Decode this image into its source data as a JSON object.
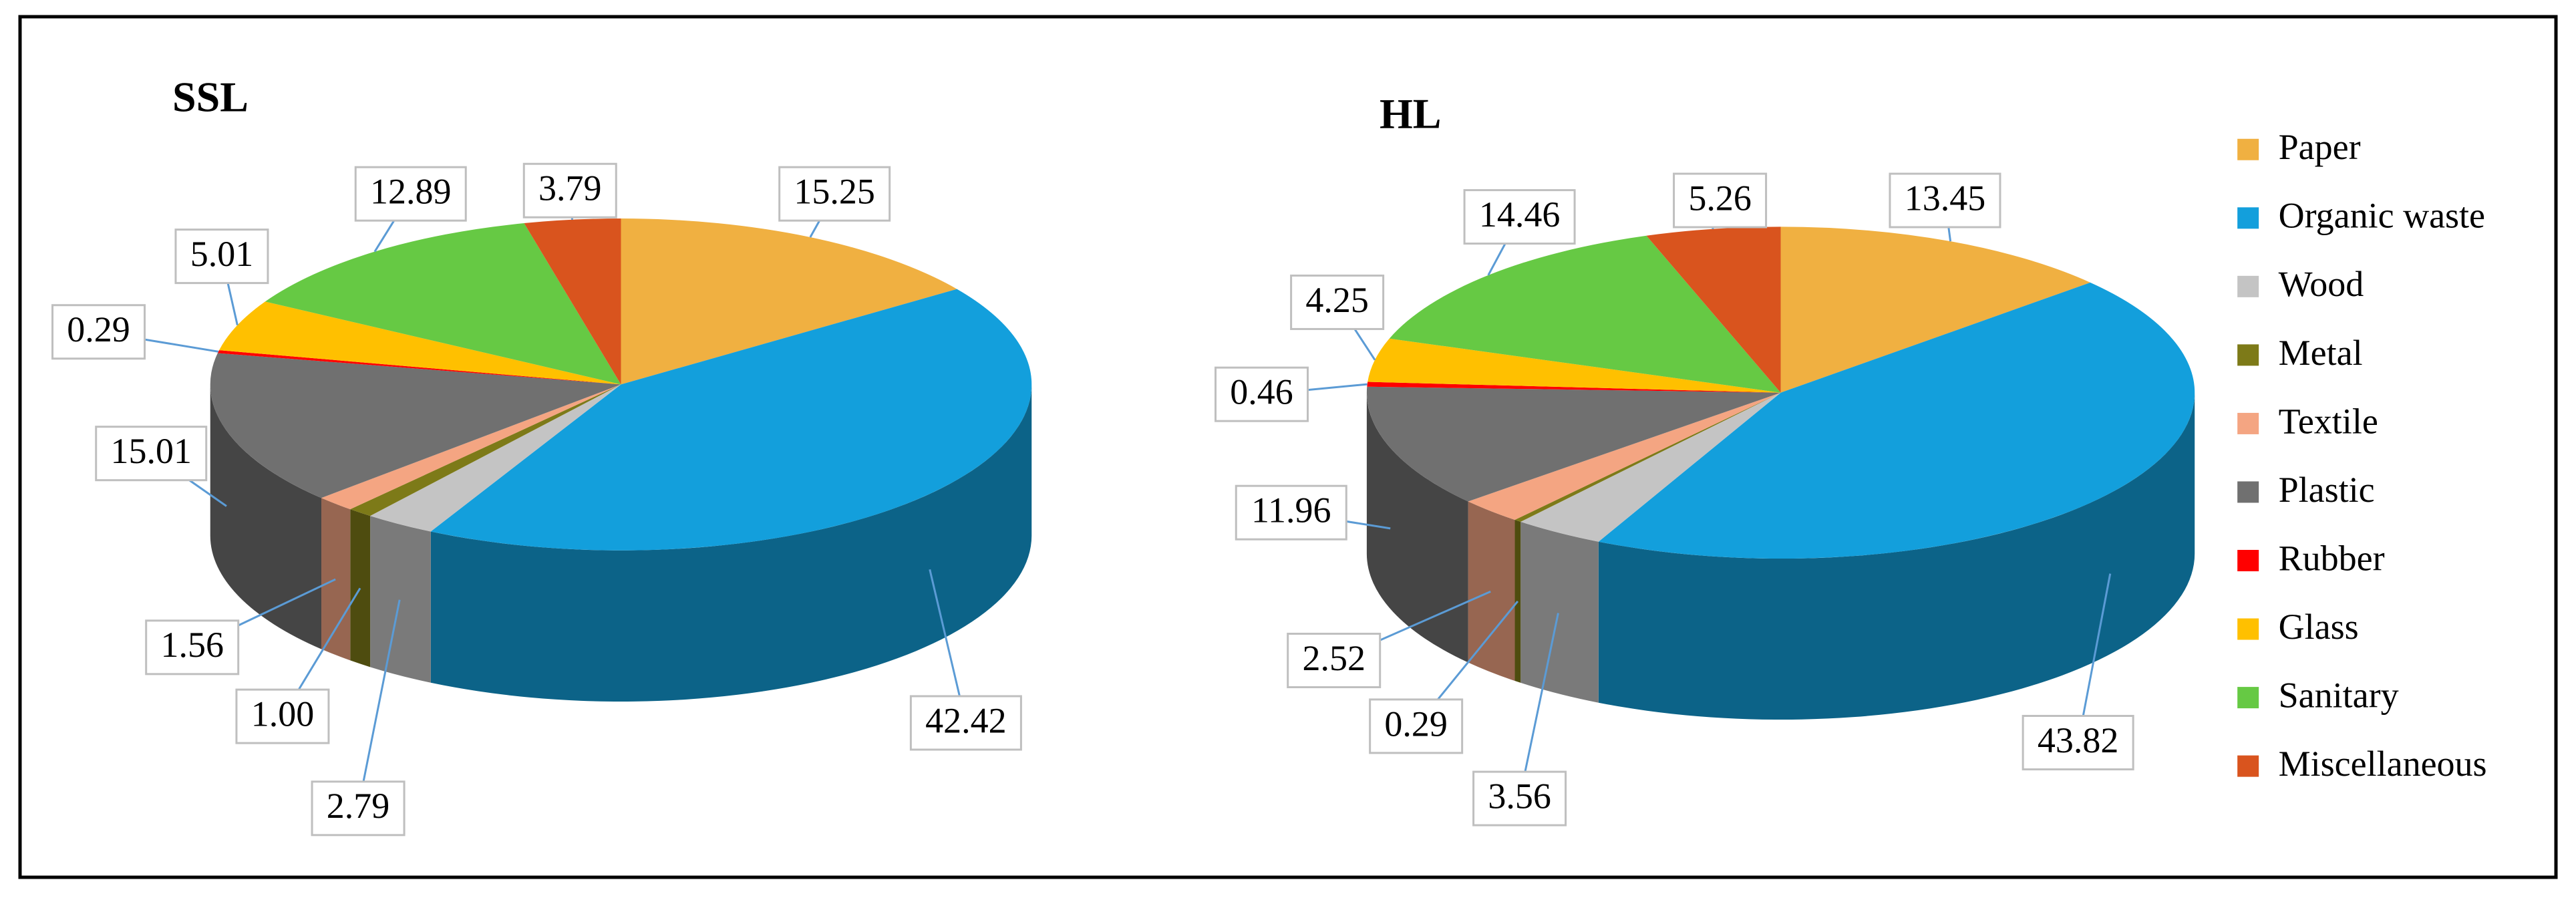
{
  "chart_data": [
    {
      "type": "pie",
      "title": "SSL",
      "values": [
        15.25,
        42.42,
        2.79,
        1.0,
        1.56,
        15.01,
        0.29,
        5.01,
        12.89,
        3.79
      ],
      "value_labels": [
        "15.25",
        "42.42",
        "2.79",
        "1.00",
        "1.56",
        "15.01",
        "0.29",
        "5.01",
        "12.89",
        "3.79"
      ]
    },
    {
      "type": "pie",
      "title": "HL",
      "values": [
        13.45,
        43.82,
        3.56,
        0.29,
        2.52,
        11.96,
        0.46,
        4.25,
        14.46,
        5.26
      ],
      "value_labels": [
        "13.45",
        "43.82",
        "3.56",
        "0.29",
        "2.52",
        "11.96",
        "0.46",
        "4.25",
        "14.46",
        "5.26"
      ]
    }
  ],
  "legend": {
    "labels": [
      "Paper",
      "Organic waste",
      "Wood",
      "Metal",
      "Textile",
      "Plastic",
      "Rubber",
      "Glass",
      "Sanitary",
      "Miscellaneous"
    ],
    "colors": [
      "#f0b041",
      "#139fdc",
      "#c4c4c4",
      "#7d7a18",
      "#f4a582",
      "#707070",
      "#ff0000",
      "#ffc000",
      "#66c944",
      "#d9541e"
    ]
  }
}
